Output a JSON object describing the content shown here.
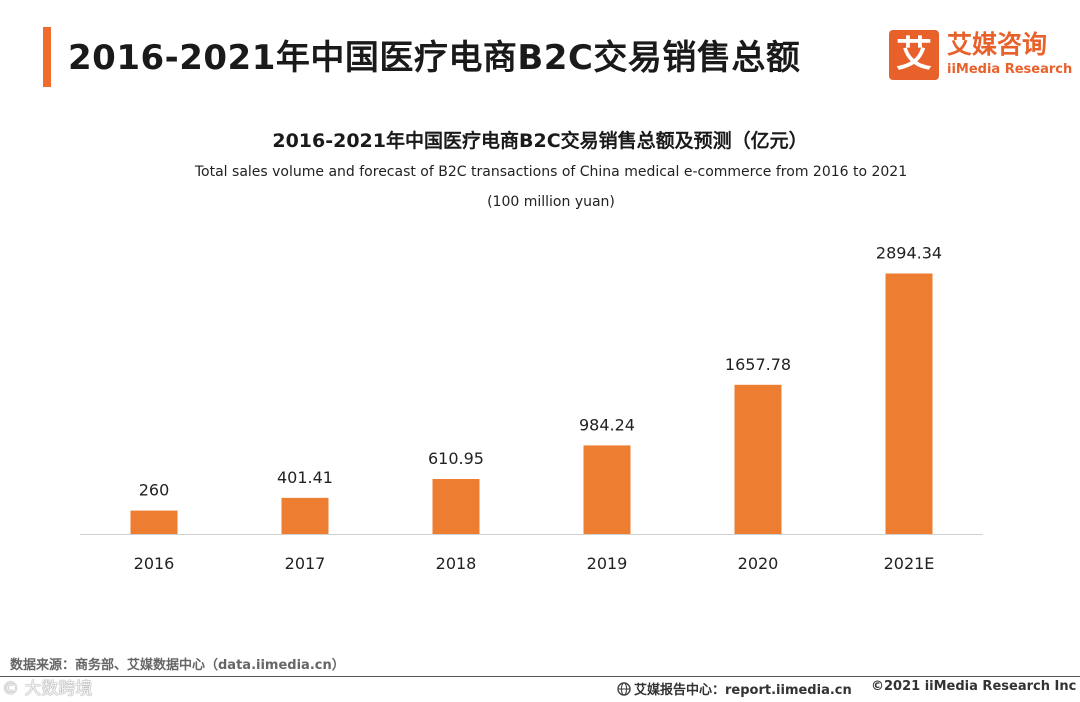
{
  "header": {
    "title": "2016-2021年中国医疗电商B2C交易销售总额",
    "accent_color": "#ee6c2d"
  },
  "logo": {
    "mark": "艾",
    "name_cn": "艾媒咨询",
    "name_en": "iiMedia Research"
  },
  "chart_data": {
    "type": "bar",
    "title": "2016-2021年中国医疗电商B2C交易销售总额及预测（亿元）",
    "subtitle": "Total sales volume and forecast of B2C transactions of China medical e-commerce from 2016 to 2021",
    "unit": "(100 million yuan)",
    "categories": [
      "2016",
      "2017",
      "2018",
      "2019",
      "2020",
      "2021E"
    ],
    "values": [
      260,
      401.41,
      610.95,
      984.24,
      1657.78,
      2894.34
    ],
    "value_labels": [
      "260",
      "401.41",
      "610.95",
      "984.24",
      "1657.78",
      "2894.34"
    ],
    "xlabel": "",
    "ylabel": "",
    "ylim": [
      0,
      3000
    ],
    "grid": false,
    "bar_color": "#ed7d31"
  },
  "footer": {
    "source": "数据来源：商务部、艾媒数据中心（data.iimedia.cn）",
    "watermark": "©  大数跨境",
    "report_site": "艾媒报告中心：report.iimedia.cn",
    "copyright": "©2021  iiMedia Research  Inc"
  }
}
